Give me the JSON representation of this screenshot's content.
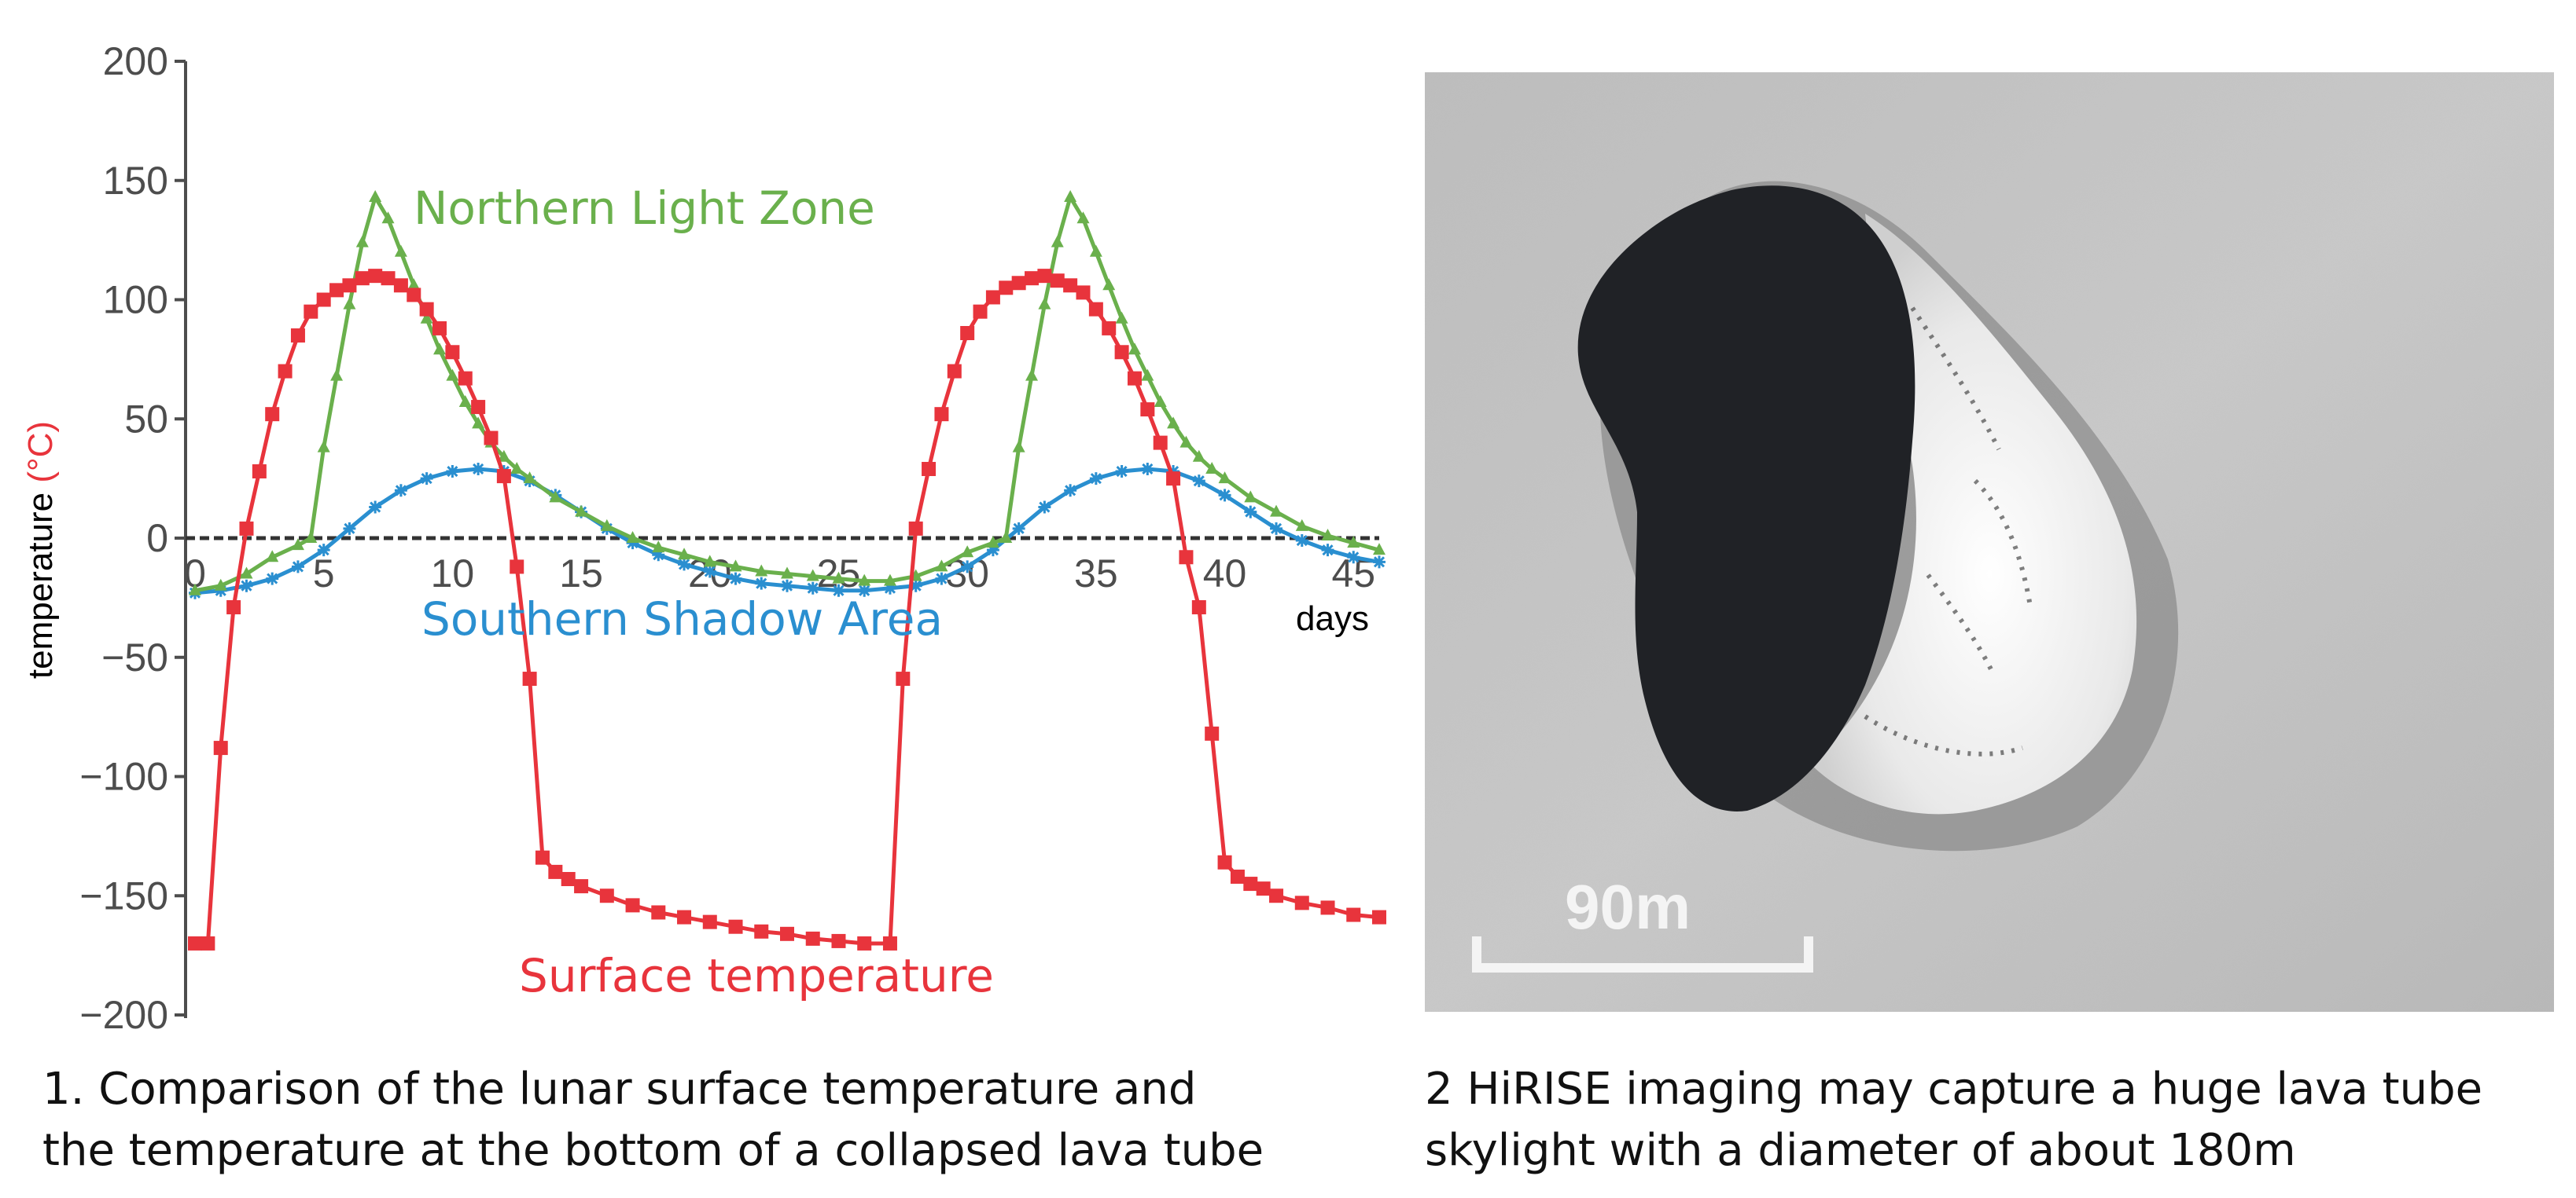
{
  "chart_data": {
    "type": "line",
    "title": "",
    "xlabel": "days",
    "ylabel": "temperature (°C)",
    "ylabel_parts": {
      "word": "temperature",
      "unit": "(°C)"
    },
    "xlim": [
      0,
      46
    ],
    "ylim": [
      -200,
      200
    ],
    "x_ticks": [
      0,
      5,
      10,
      15,
      20,
      25,
      30,
      35,
      40,
      45
    ],
    "y_ticks": [
      200,
      150,
      100,
      50,
      0,
      -50,
      -100,
      -150,
      -200
    ],
    "y_tick_labels": [
      "200",
      "150",
      "100",
      "50",
      "0",
      "−50",
      "−100",
      "−150",
      "−200"
    ],
    "grid": false,
    "series": [
      {
        "name": "Surface temperature",
        "color": "#e8343c",
        "marker": "square",
        "x": [
          0,
          0.5,
          1,
          1.5,
          2,
          2.5,
          3,
          3.5,
          4,
          4.5,
          5,
          5.5,
          6,
          6.5,
          7,
          7.5,
          8,
          8.5,
          9,
          9.5,
          10,
          10.5,
          11,
          11.5,
          12,
          12.5,
          13,
          13.5,
          14,
          14.5,
          15,
          16,
          17,
          18,
          19,
          20,
          21,
          22,
          23,
          24,
          25,
          26,
          27,
          27.5,
          28,
          28.5,
          29,
          29.5,
          30,
          30.5,
          31,
          31.5,
          32,
          32.5,
          33,
          33.5,
          34,
          34.5,
          35,
          35.5,
          36,
          36.5,
          37,
          37.5,
          38,
          38.5,
          39,
          39.5,
          40,
          40.5,
          41,
          41.5,
          42,
          43,
          44,
          45,
          46
        ],
        "values": [
          -170,
          -170,
          -88,
          -29,
          4,
          28,
          52,
          70,
          85,
          95,
          100,
          104,
          106,
          109,
          110,
          109,
          106,
          102,
          96,
          88,
          78,
          67,
          55,
          42,
          26,
          -12,
          -59,
          -134,
          -140,
          -143,
          -146,
          -150,
          -154,
          -157,
          -159,
          -161,
          -163,
          -165,
          -166,
          -168,
          -169,
          -170,
          -170,
          -59,
          4,
          29,
          52,
          70,
          86,
          95,
          101,
          105,
          107,
          109,
          110,
          108,
          106,
          103,
          96,
          88,
          78,
          67,
          54,
          40,
          25,
          -8,
          -29,
          -82,
          -136,
          -142,
          -145,
          -147,
          -150,
          -153,
          -155,
          -158,
          -159
        ]
      },
      {
        "name": "Northern Light Zone",
        "color": "#6ab04c",
        "marker": "triangle",
        "x": [
          0,
          1,
          2,
          3,
          4,
          4.5,
          5,
          5.5,
          6,
          6.5,
          7,
          7.5,
          8,
          8.5,
          9,
          9.5,
          10,
          10.5,
          11,
          11.5,
          12,
          12.5,
          13,
          14,
          15,
          16,
          17,
          18,
          19,
          20,
          21,
          22,
          23,
          24,
          25,
          26,
          27,
          28,
          29,
          30,
          31,
          31.5,
          32,
          32.5,
          33,
          33.5,
          34,
          34.5,
          35,
          35.5,
          36,
          36.5,
          37,
          37.5,
          38,
          38.5,
          39,
          39.5,
          40,
          41,
          42,
          43,
          44,
          45,
          46
        ],
        "values": [
          -22,
          -20,
          -15,
          -8,
          -3,
          0,
          38,
          68,
          98,
          124,
          143,
          134,
          120,
          106,
          92,
          79,
          68,
          57,
          48,
          40,
          34,
          29,
          25,
          17,
          11,
          5,
          0,
          -4,
          -7,
          -10,
          -12,
          -14,
          -15,
          -16,
          -17,
          -18,
          -18,
          -16,
          -12,
          -6,
          -2,
          0,
          38,
          68,
          98,
          124,
          143,
          134,
          120,
          106,
          92,
          79,
          68,
          57,
          48,
          40,
          34,
          29,
          25,
          17,
          11,
          5,
          1,
          -2,
          -5
        ]
      },
      {
        "name": "Southern Shadow Area",
        "color": "#2a8fd0",
        "marker": "star",
        "x": [
          0,
          1,
          2,
          3,
          4,
          5,
          6,
          7,
          8,
          9,
          10,
          11,
          12,
          13,
          14,
          15,
          16,
          17,
          18,
          19,
          20,
          21,
          22,
          23,
          24,
          25,
          26,
          27,
          28,
          29,
          30,
          31,
          32,
          33,
          34,
          35,
          36,
          37,
          38,
          39,
          40,
          41,
          42,
          43,
          44,
          45,
          46
        ],
        "values": [
          -23,
          -22,
          -20,
          -17,
          -12,
          -5,
          4,
          13,
          20,
          25,
          28,
          29,
          28,
          24,
          18,
          11,
          4,
          -2,
          -7,
          -11,
          -14,
          -17,
          -19,
          -20,
          -21,
          -22,
          -22,
          -21,
          -20,
          -17,
          -12,
          -5,
          4,
          13,
          20,
          25,
          28,
          29,
          28,
          24,
          18,
          11,
          4,
          -1,
          -5,
          -8,
          -10
        ]
      }
    ]
  },
  "labels": {
    "northern": "Northern Light Zone",
    "southern": "Southern Shadow Area",
    "surface": "Surface temperature",
    "days": "days"
  },
  "photo": {
    "scale_label": "90m"
  },
  "captions": {
    "left_line1": "1. Comparison of the lunar surface temperature and",
    "left_line2": "the temperature at the bottom of a collapsed lava tube",
    "right_line1": "2 HiRISE imaging may capture a huge lava tube",
    "right_line2": "skylight with a diameter of about 180m"
  }
}
